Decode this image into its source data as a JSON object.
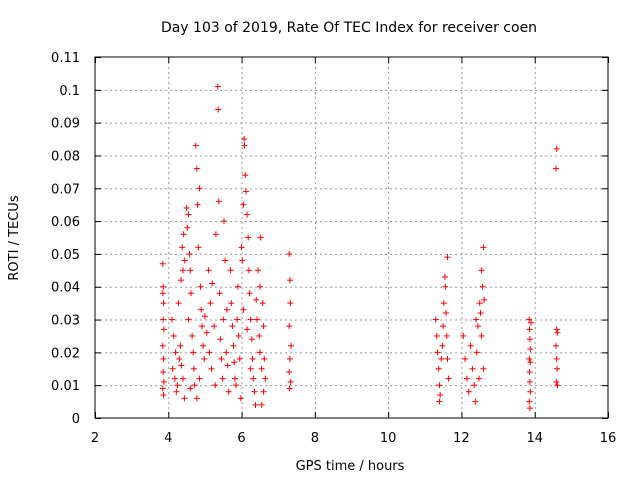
{
  "chart_data": {
    "type": "scatter",
    "title": "Day 103 of 2019, Rate Of TEC Index for receiver coen",
    "xlabel": "GPS time / hours",
    "ylabel": "ROTI / TECUs",
    "xlim": [
      2,
      16
    ],
    "ylim": [
      0,
      0.11
    ],
    "xticks": [
      2,
      4,
      6,
      8,
      10,
      12,
      14,
      16
    ],
    "xtick_labels": [
      "2",
      "4",
      "6",
      "8",
      "10",
      "12",
      "14",
      "16"
    ],
    "yticks": [
      0,
      0.01,
      0.02,
      0.03,
      0.04,
      0.05,
      0.06,
      0.07,
      0.08,
      0.09,
      0.1,
      0.11
    ],
    "ytick_labels": [
      "0",
      "0.01",
      "0.02",
      "0.03",
      "0.04",
      "0.05",
      "0.06",
      "0.07",
      "0.08",
      "0.09",
      "0.1",
      "0.11"
    ],
    "grid": true,
    "marker": "+",
    "marker_color": "#ff0000",
    "series": [
      {
        "name": "ROTI",
        "points": [
          [
            3.85,
            0.047
          ],
          [
            3.85,
            0.038
          ],
          [
            3.87,
            0.035
          ],
          [
            3.86,
            0.03
          ],
          [
            3.88,
            0.027
          ],
          [
            3.85,
            0.022
          ],
          [
            3.87,
            0.018
          ],
          [
            3.86,
            0.014
          ],
          [
            3.88,
            0.011
          ],
          [
            3.85,
            0.009
          ],
          [
            3.87,
            0.007
          ],
          [
            3.86,
            0.04
          ],
          [
            4.1,
            0.03
          ],
          [
            4.15,
            0.025
          ],
          [
            4.2,
            0.02
          ],
          [
            4.12,
            0.015
          ],
          [
            4.18,
            0.012
          ],
          [
            4.25,
            0.01
          ],
          [
            4.3,
            0.018
          ],
          [
            4.22,
            0.008
          ],
          [
            4.28,
            0.035
          ],
          [
            4.35,
            0.042
          ],
          [
            4.4,
            0.045
          ],
          [
            4.38,
            0.052
          ],
          [
            4.42,
            0.056
          ],
          [
            4.45,
            0.048
          ],
          [
            4.33,
            0.022
          ],
          [
            4.36,
            0.016
          ],
          [
            4.4,
            0.012
          ],
          [
            4.44,
            0.006
          ],
          [
            4.5,
            0.064
          ],
          [
            4.52,
            0.058
          ],
          [
            4.55,
            0.062
          ],
          [
            4.58,
            0.05
          ],
          [
            4.6,
            0.045
          ],
          [
            4.62,
            0.038
          ],
          [
            4.55,
            0.03
          ],
          [
            4.65,
            0.025
          ],
          [
            4.68,
            0.02
          ],
          [
            4.7,
            0.015
          ],
          [
            4.72,
            0.01
          ],
          [
            4.75,
            0.083
          ],
          [
            4.78,
            0.076
          ],
          [
            4.8,
            0.065
          ],
          [
            4.85,
            0.07
          ],
          [
            4.82,
            0.052
          ],
          [
            4.88,
            0.04
          ],
          [
            4.9,
            0.033
          ],
          [
            4.92,
            0.028
          ],
          [
            4.95,
            0.022
          ],
          [
            4.98,
            0.018
          ],
          [
            4.6,
            0.009
          ],
          [
            4.78,
            0.006
          ],
          [
            4.85,
            0.012
          ],
          [
            5.0,
            0.031
          ],
          [
            5.05,
            0.026
          ],
          [
            5.1,
            0.045
          ],
          [
            5.12,
            0.02
          ],
          [
            5.15,
            0.035
          ],
          [
            5.18,
            0.015
          ],
          [
            5.2,
            0.041
          ],
          [
            5.25,
            0.028
          ],
          [
            5.28,
            0.01
          ],
          [
            5.3,
            0.056
          ],
          [
            5.35,
            0.101
          ],
          [
            5.36,
            0.094
          ],
          [
            5.38,
            0.066
          ],
          [
            5.4,
            0.038
          ],
          [
            5.42,
            0.024
          ],
          [
            5.45,
            0.018
          ],
          [
            5.48,
            0.012
          ],
          [
            5.5,
            0.03
          ],
          [
            5.52,
            0.06
          ],
          [
            5.55,
            0.048
          ],
          [
            5.58,
            0.02
          ],
          [
            5.6,
            0.033
          ],
          [
            5.62,
            0.016
          ],
          [
            5.65,
            0.008
          ],
          [
            5.7,
            0.045
          ],
          [
            5.72,
            0.035
          ],
          [
            5.75,
            0.028
          ],
          [
            5.78,
            0.022
          ],
          [
            5.8,
            0.017
          ],
          [
            5.82,
            0.012
          ],
          [
            5.85,
            0.01
          ],
          [
            5.88,
            0.03
          ],
          [
            5.9,
            0.04
          ],
          [
            5.92,
            0.025
          ],
          [
            5.95,
            0.018
          ],
          [
            5.98,
            0.006
          ],
          [
            6.0,
            0.052
          ],
          [
            6.02,
            0.048
          ],
          [
            6.05,
            0.065
          ],
          [
            6.07,
            0.085
          ],
          [
            6.08,
            0.083
          ],
          [
            6.1,
            0.074
          ],
          [
            6.12,
            0.069
          ],
          [
            6.15,
            0.062
          ],
          [
            6.18,
            0.055
          ],
          [
            6.2,
            0.045
          ],
          [
            6.22,
            0.038
          ],
          [
            6.25,
            0.03
          ],
          [
            6.28,
            0.024
          ],
          [
            6.3,
            0.018
          ],
          [
            6.32,
            0.012
          ],
          [
            6.35,
            0.008
          ],
          [
            6.38,
            0.004
          ],
          [
            6.05,
            0.033
          ],
          [
            6.15,
            0.027
          ],
          [
            6.25,
            0.015
          ],
          [
            6.4,
            0.036
          ],
          [
            6.42,
            0.03
          ],
          [
            6.45,
            0.045
          ],
          [
            6.48,
            0.025
          ],
          [
            6.5,
            0.02
          ],
          [
            6.52,
            0.055
          ],
          [
            6.55,
            0.015
          ],
          [
            6.58,
            0.035
          ],
          [
            6.6,
            0.028
          ],
          [
            6.62,
            0.018
          ],
          [
            6.65,
            0.012
          ],
          [
            6.55,
            0.004
          ],
          [
            6.5,
            0.04
          ],
          [
            6.6,
            0.008
          ],
          [
            7.3,
            0.05
          ],
          [
            7.32,
            0.042
          ],
          [
            7.33,
            0.035
          ],
          [
            7.3,
            0.028
          ],
          [
            7.35,
            0.022
          ],
          [
            7.32,
            0.018
          ],
          [
            7.3,
            0.014
          ],
          [
            7.34,
            0.011
          ],
          [
            7.31,
            0.009
          ],
          [
            11.3,
            0.03
          ],
          [
            11.33,
            0.025
          ],
          [
            11.35,
            0.02
          ],
          [
            11.38,
            0.015
          ],
          [
            11.4,
            0.01
          ],
          [
            11.42,
            0.007
          ],
          [
            11.45,
            0.018
          ],
          [
            11.48,
            0.022
          ],
          [
            11.5,
            0.028
          ],
          [
            11.52,
            0.035
          ],
          [
            11.55,
            0.043
          ],
          [
            11.56,
            0.04
          ],
          [
            11.58,
            0.032
          ],
          [
            11.6,
            0.025
          ],
          [
            11.62,
            0.018
          ],
          [
            11.65,
            0.012
          ],
          [
            11.62,
            0.049
          ],
          [
            11.4,
            0.005
          ],
          [
            12.05,
            0.025
          ],
          [
            12.1,
            0.018
          ],
          [
            12.15,
            0.012
          ],
          [
            12.2,
            0.008
          ],
          [
            12.25,
            0.022
          ],
          [
            12.3,
            0.015
          ],
          [
            12.35,
            0.01
          ],
          [
            12.38,
            0.005
          ],
          [
            12.4,
            0.03
          ],
          [
            12.42,
            0.02
          ],
          [
            12.45,
            0.028
          ],
          [
            12.5,
            0.035
          ],
          [
            12.52,
            0.032
          ],
          [
            12.55,
            0.045
          ],
          [
            12.58,
            0.04
          ],
          [
            12.6,
            0.052
          ],
          [
            12.62,
            0.036
          ],
          [
            12.55,
            0.025
          ],
          [
            12.6,
            0.015
          ],
          [
            12.48,
            0.012
          ],
          [
            13.85,
            0.03
          ],
          [
            13.86,
            0.027
          ],
          [
            13.87,
            0.024
          ],
          [
            13.88,
            0.021
          ],
          [
            13.85,
            0.018
          ],
          [
            13.86,
            0.014
          ],
          [
            13.87,
            0.011
          ],
          [
            13.88,
            0.008
          ],
          [
            13.85,
            0.005
          ],
          [
            13.87,
            0.003
          ],
          [
            13.9,
            0.029
          ],
          [
            13.88,
            0.017
          ],
          [
            14.6,
            0.082
          ],
          [
            14.58,
            0.076
          ],
          [
            14.6,
            0.027
          ],
          [
            14.62,
            0.026
          ],
          [
            14.58,
            0.022
          ],
          [
            14.6,
            0.018
          ],
          [
            14.61,
            0.015
          ],
          [
            14.59,
            0.011
          ],
          [
            14.62,
            0.01
          ]
        ]
      }
    ]
  }
}
